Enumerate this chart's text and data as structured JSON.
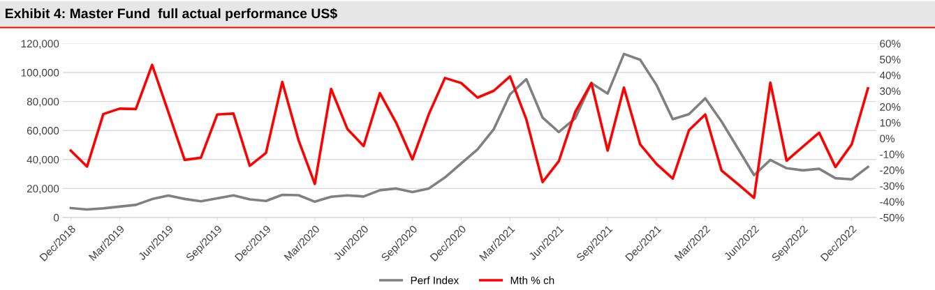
{
  "chart_data": {
    "type": "line",
    "title": "Exhibit 4: Master Fund  full actual performance US$",
    "categories": [
      "Dec/2018",
      null,
      null,
      "Mar/2019",
      null,
      null,
      "Jun/2019",
      null,
      null,
      "Sep/2019",
      null,
      null,
      "Dec/2019",
      null,
      null,
      "Mar/2020",
      null,
      null,
      "Jun/2020",
      null,
      null,
      "Sep/2020",
      null,
      null,
      "Dec/2020",
      null,
      null,
      "Mar/2021",
      null,
      null,
      "Jun/2021",
      null,
      null,
      "Sep/2021",
      null,
      null,
      "Dec/2021",
      null,
      null,
      "Mar/2022",
      null,
      null,
      "Jun/2022",
      null,
      null,
      "Sep/2022",
      null,
      null,
      "Dec/2022",
      null
    ],
    "series": [
      {
        "name": "Perf Index",
        "color": "#808080",
        "values": [
          6500,
          5500,
          6300,
          7500,
          8700,
          12700,
          15100,
          12800,
          11200,
          13200,
          15300,
          12500,
          11400,
          15600,
          15400,
          10900,
          14300,
          15300,
          14500,
          18800,
          20000,
          17500,
          20000,
          27600,
          37300,
          46900,
          60900,
          85000,
          95400,
          68900,
          58900,
          68300,
          92700,
          85500,
          112800,
          108800,
          91400,
          67800,
          71300,
          82200,
          66200,
          47700,
          29200,
          39700,
          34000,
          32500,
          33600,
          27100,
          26300,
          34900
        ]
      },
      {
        "name": "Mth % ch",
        "color": "#ff0000",
        "axis": "y2",
        "values": [
          -7.7,
          -17.8,
          15.4,
          18.8,
          18.6,
          46.5,
          16.6,
          -13.6,
          -12.2,
          15.1,
          15.7,
          -17.3,
          -9.2,
          35.7,
          -1.1,
          -28.8,
          31.3,
          6.0,
          -4.8,
          28.6,
          9.9,
          -13.3,
          15.1,
          38.2,
          35.0,
          25.8,
          30.1,
          39.2,
          12.1,
          -27.6,
          -14.4,
          16.6,
          35.0,
          -7.7,
          32.1,
          -3.8,
          -16.1,
          -25.4,
          5.2,
          15.1,
          -20.3,
          -28.8,
          -37.6,
          35.3,
          -14.1,
          -5.2,
          3.6,
          -18.1,
          -3.8,
          31.6
        ]
      }
    ],
    "ylim": [
      0,
      120000
    ],
    "yticks": [
      0,
      {
        "value": 20000,
        "label": "20,000"
      },
      {
        "value": 40000,
        "label": "40,000"
      },
      {
        "value": 60000,
        "label": "60,000"
      },
      {
        "value": 80000,
        "label": "80,000"
      },
      {
        "value": 100000,
        "label": "100,000"
      },
      {
        "value": 120000,
        "label": "120,000"
      }
    ],
    "y2lim": [
      -50,
      60
    ],
    "y2ticks": [
      {
        "value": -50,
        "label": "-50%"
      },
      {
        "value": -40,
        "label": "-40%"
      },
      {
        "value": -30,
        "label": "-30%"
      },
      {
        "value": -20,
        "label": "-20%"
      },
      {
        "value": -10,
        "label": "-10%"
      },
      {
        "value": 0,
        "label": "0%"
      },
      {
        "value": 10,
        "label": "10%"
      },
      {
        "value": 20,
        "label": "20%"
      },
      {
        "value": 30,
        "label": "30%"
      },
      {
        "value": 40,
        "label": "40%"
      },
      {
        "value": 50,
        "label": "50%"
      },
      {
        "value": 60,
        "label": "60%"
      }
    ],
    "grid": "y",
    "legend": "bottom",
    "marker": "none",
    "line_style": "solid"
  }
}
